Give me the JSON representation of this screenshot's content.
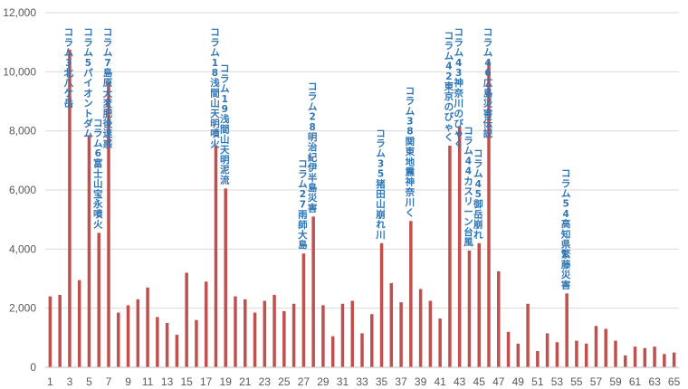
{
  "chart_data": {
    "type": "bar",
    "title": "",
    "xlabel": "",
    "ylabel": "",
    "ylim": [
      0,
      12000
    ],
    "y_ticks": [
      0,
      2000,
      4000,
      6000,
      8000,
      10000,
      12000
    ],
    "y_tick_labels": [
      "0",
      "2,000",
      "4,000",
      "6,000",
      "8,000",
      "10,000",
      "12,000"
    ],
    "x_tick_labels": [
      "1",
      "3",
      "5",
      "7",
      "9",
      "11",
      "13",
      "15",
      "17",
      "19",
      "21",
      "23",
      "25",
      "27",
      "29",
      "31",
      "33",
      "35",
      "37",
      "39",
      "41",
      "43",
      "45",
      "47",
      "49",
      "51",
      "53",
      "55",
      "57",
      "59",
      "61",
      "63",
      "65"
    ],
    "x": [
      1,
      2,
      3,
      4,
      5,
      6,
      7,
      8,
      9,
      10,
      11,
      12,
      13,
      14,
      15,
      16,
      17,
      18,
      19,
      20,
      21,
      22,
      23,
      24,
      25,
      26,
      27,
      28,
      29,
      30,
      31,
      32,
      33,
      34,
      35,
      36,
      37,
      38,
      39,
      40,
      41,
      42,
      43,
      44,
      45,
      46,
      47,
      48,
      49,
      50,
      51,
      52,
      53,
      54,
      55,
      56,
      57,
      58,
      59,
      60,
      61,
      62,
      63,
      64,
      65
    ],
    "values": [
      2400,
      2450,
      10750,
      2950,
      7850,
      4550,
      9650,
      1850,
      2100,
      2300,
      2700,
      1700,
      1500,
      1100,
      3200,
      1600,
      2900,
      7500,
      6050,
      2400,
      2300,
      1850,
      2250,
      2450,
      1900,
      2150,
      3850,
      5100,
      2100,
      1050,
      2150,
      2250,
      1150,
      1800,
      4200,
      2850,
      2200,
      4950,
      2650,
      2250,
      1650,
      7500,
      8150,
      3950,
      4200,
      10350,
      3250,
      1200,
      800,
      2150,
      550,
      1150,
      850,
      2500,
      900,
      800,
      1400,
      1300,
      900,
      400,
      700,
      650,
      700,
      450,
      500
    ],
    "grid": true,
    "legend": "none",
    "bar_color": "#c0504d",
    "annotation_color": "#2e75b6",
    "annotations": [
      {
        "x": 3,
        "text": "コラム3北八ケ岳"
      },
      {
        "x": 5,
        "text": "コラム5パイオントダム"
      },
      {
        "x": 6,
        "text": "コラム6富士山宝永噴火"
      },
      {
        "x": 7,
        "text": "コラム7島原大変肥後迷惑"
      },
      {
        "x": 18,
        "text": "コラム18浅間山天明噴火"
      },
      {
        "x": 19,
        "text": "コラム19浅間山天明泥流"
      },
      {
        "x": 27,
        "text": "コラム27雨師大島"
      },
      {
        "x": 28,
        "text": "コラム28明治紀伊半島災害"
      },
      {
        "x": 35,
        "text": "コラム35猪田山崩れ川"
      },
      {
        "x": 38,
        "text": "コラム38関東地震神奈川く"
      },
      {
        "x": 42,
        "text": "コラム42東京のびゃく"
      },
      {
        "x": 43,
        "text": "コラム43神奈川のびゃく"
      },
      {
        "x": 44,
        "text": "コラム44カスリーン台風"
      },
      {
        "x": 45,
        "text": "コラム45御岳崩れ"
      },
      {
        "x": 46,
        "text": "コラム46広島災害伝説"
      },
      {
        "x": 54,
        "text": "コラム54高知県繁藤災害"
      }
    ]
  }
}
